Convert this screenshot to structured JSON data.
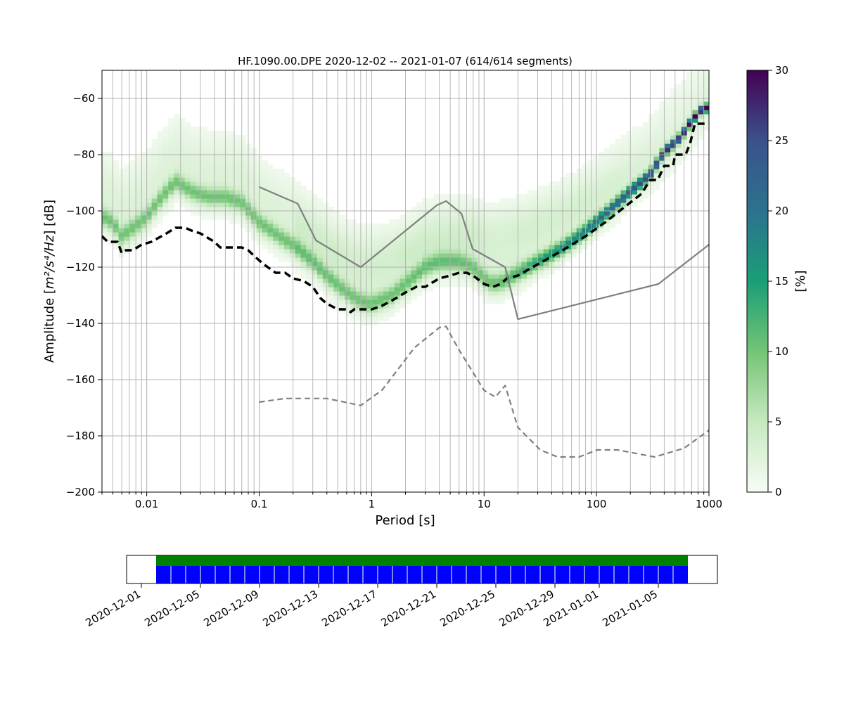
{
  "chart_data": [
    {
      "type": "heatmap",
      "title": "HF.1090.00.DPE   2020-12-02 -- 2021-01-07  (614/614 segments)",
      "xlabel": "Period [s]",
      "ylabel_prefix": "Amplitude [",
      "ylabel_math": "m²/s⁴/Hz",
      "ylabel_suffix": "] [dB]",
      "x_scale": "log",
      "xlim": [
        0.004,
        1000
      ],
      "ylim": [
        -200,
        -50
      ],
      "grid": true,
      "x_ticks": [
        {
          "value": 0.01,
          "label": "0.01"
        },
        {
          "value": 0.1,
          "label": "0.1"
        },
        {
          "value": 1,
          "label": "1"
        },
        {
          "value": 10,
          "label": "10"
        },
        {
          "value": 100,
          "label": "100"
        },
        {
          "value": 1000,
          "label": "1000"
        }
      ],
      "y_ticks": [
        {
          "value": -60,
          "label": "−60"
        },
        {
          "value": -80,
          "label": "−80"
        },
        {
          "value": -100,
          "label": "−100"
        },
        {
          "value": -120,
          "label": "−120"
        },
        {
          "value": -140,
          "label": "−140"
        },
        {
          "value": -160,
          "label": "−160"
        },
        {
          "value": -180,
          "label": "−180"
        },
        {
          "value": -200,
          "label": "−200"
        }
      ],
      "colorbar": {
        "label": "[%]",
        "range": [
          0,
          30
        ],
        "colormap": "viridis_r-like (white → green → teal → purple)",
        "stops": [
          "#f7fcf5",
          "#c7e9c0",
          "#74c476",
          "#1a9e77",
          "#2c728e",
          "#3b528b",
          "#440154"
        ],
        "ticks": [
          {
            "value": 0,
            "label": "0"
          },
          {
            "value": 5,
            "label": "5"
          },
          {
            "value": 10,
            "label": "10"
          },
          {
            "value": 15,
            "label": "15"
          },
          {
            "value": 20,
            "label": "20"
          },
          {
            "value": 25,
            "label": "25"
          },
          {
            "value": 30,
            "label": "30"
          }
        ]
      },
      "ppsd_mode_ridge": [
        [
          0.004,
          -102
        ],
        [
          0.005,
          -104
        ],
        [
          0.006,
          -109
        ],
        [
          0.0075,
          -106
        ],
        [
          0.01,
          -102
        ],
        [
          0.013,
          -96
        ],
        [
          0.018,
          -89.5
        ],
        [
          0.025,
          -93
        ],
        [
          0.035,
          -95
        ],
        [
          0.05,
          -95
        ],
        [
          0.07,
          -97
        ],
        [
          0.1,
          -104
        ],
        [
          0.15,
          -109
        ],
        [
          0.2,
          -112
        ],
        [
          0.3,
          -118
        ],
        [
          0.4,
          -123
        ],
        [
          0.6,
          -129
        ],
        [
          0.8,
          -132
        ],
        [
          1.0,
          -133
        ],
        [
          1.5,
          -130
        ],
        [
          2.0,
          -126
        ],
        [
          3.0,
          -120
        ],
        [
          4.0,
          -118
        ],
        [
          6.0,
          -118
        ],
        [
          8.0,
          -120
        ],
        [
          10.0,
          -124
        ],
        [
          12.0,
          -126
        ],
        [
          15.0,
          -125
        ],
        [
          20.0,
          -122
        ],
        [
          30.0,
          -118
        ],
        [
          50.0,
          -113
        ],
        [
          80.0,
          -107
        ],
        [
          120.0,
          -101
        ],
        [
          200.0,
          -93
        ],
        [
          300.0,
          -87
        ],
        [
          400.0,
          -79
        ],
        [
          550.0,
          -74
        ],
        [
          700.0,
          -68
        ],
        [
          850.0,
          -64
        ],
        [
          1000.0,
          -63
        ]
      ],
      "diffuse_branch": [
        [
          0.2,
          -106
        ],
        [
          0.5,
          -114
        ],
        [
          1.0,
          -116
        ],
        [
          3.0,
          -113
        ],
        [
          6.0,
          -110
        ],
        [
          10.0,
          -107
        ],
        [
          20.0,
          -105
        ],
        [
          50.0,
          -100
        ],
        [
          100.0,
          -95
        ],
        [
          200.0,
          -88
        ],
        [
          400.0,
          -80
        ],
        [
          700.0,
          -70
        ],
        [
          1000.0,
          -60
        ]
      ],
      "series": [
        {
          "name": "",
          "style": "black dashed thick",
          "points": [
            [
              0.004,
              -109
            ],
            [
              0.0045,
              -111
            ],
            [
              0.0055,
              -111
            ],
            [
              0.006,
              -115
            ],
            [
              0.0065,
              -114
            ],
            [
              0.0075,
              -114
            ],
            [
              0.009,
              -112
            ],
            [
              0.011,
              -111
            ],
            [
              0.015,
              -108
            ],
            [
              0.018,
              -106
            ],
            [
              0.022,
              -106
            ],
            [
              0.025,
              -107
            ],
            [
              0.03,
              -108
            ],
            [
              0.04,
              -111
            ],
            [
              0.045,
              -113
            ],
            [
              0.06,
              -113
            ],
            [
              0.07,
              -113
            ],
            [
              0.08,
              -114
            ],
            [
              0.09,
              -116
            ],
            [
              0.11,
              -119
            ],
            [
              0.14,
              -122
            ],
            [
              0.17,
              -122
            ],
            [
              0.2,
              -124
            ],
            [
              0.25,
              -125
            ],
            [
              0.3,
              -127
            ],
            [
              0.35,
              -131
            ],
            [
              0.4,
              -133
            ],
            [
              0.5,
              -135
            ],
            [
              0.6,
              -135
            ],
            [
              0.65,
              -136
            ],
            [
              0.7,
              -135
            ],
            [
              0.8,
              -135
            ],
            [
              1.0,
              -135
            ],
            [
              1.2,
              -134
            ],
            [
              1.5,
              -132
            ],
            [
              2.0,
              -129
            ],
            [
              2.5,
              -127
            ],
            [
              3.0,
              -127
            ],
            [
              4.0,
              -124
            ],
            [
              5.0,
              -123
            ],
            [
              6.0,
              -122
            ],
            [
              7.0,
              -122
            ],
            [
              8.0,
              -123
            ],
            [
              10.0,
              -126
            ],
            [
              12.0,
              -127
            ],
            [
              14.0,
              -126
            ],
            [
              16.0,
              -124
            ],
            [
              20.0,
              -123
            ],
            [
              30.0,
              -119
            ],
            [
              50.0,
              -114
            ],
            [
              80.0,
              -109
            ],
            [
              120.0,
              -104
            ],
            [
              200.0,
              -97
            ],
            [
              250.0,
              -94
            ],
            [
              300.0,
              -89
            ],
            [
              350.0,
              -89
            ],
            [
              400.0,
              -84
            ],
            [
              480.0,
              -84
            ],
            [
              500.0,
              -80
            ],
            [
              620.0,
              -80
            ],
            [
              680.0,
              -76
            ],
            [
              750.0,
              -69
            ],
            [
              1000.0,
              -69
            ]
          ]
        },
        {
          "name": "",
          "style": "gray solid",
          "points": [
            [
              0.1,
              -91.5
            ],
            [
              0.22,
              -97.4
            ],
            [
              0.32,
              -110.5
            ],
            [
              0.8,
              -120.0
            ],
            [
              3.8,
              -98.0
            ],
            [
              4.6,
              -96.5
            ],
            [
              6.3,
              -101.0
            ],
            [
              7.9,
              -113.5
            ],
            [
              15.4,
              -120.0
            ],
            [
              20.0,
              -138.5
            ],
            [
              354.8,
              -126.0
            ],
            [
              1000.0,
              -112.0
            ]
          ]
        },
        {
          "name": "",
          "style": "gray dashed",
          "points": [
            [
              0.1,
              -168.0
            ],
            [
              0.17,
              -166.7
            ],
            [
              0.4,
              -166.7
            ],
            [
              0.8,
              -169.2
            ],
            [
              1.24,
              -163.7
            ],
            [
              2.41,
              -148.6
            ],
            [
              4.0,
              -141.5
            ],
            [
              4.6,
              -141.1
            ],
            [
              5.9,
              -149.0
            ],
            [
              10.0,
              -163.8
            ],
            [
              12.6,
              -166.2
            ],
            [
              15.4,
              -162.1
            ],
            [
              20.0,
              -177.0
            ],
            [
              31.6,
              -185.0
            ],
            [
              45.0,
              -187.5
            ],
            [
              70.0,
              -187.5
            ],
            [
              101.0,
              -185.0
            ],
            [
              154.0,
              -185.0
            ],
            [
              328.0,
              -187.5
            ],
            [
              600.0,
              -184.4
            ],
            [
              1000.0,
              -178.0
            ]
          ]
        }
      ]
    },
    {
      "type": "bar",
      "title": "",
      "timeline_range": [
        "2020-11-30 00:00",
        "2021-01-09 00:00"
      ],
      "top_bar": {
        "start": "2020-12-02",
        "end": "2021-01-07",
        "color": "#008000"
      },
      "blue_bar": {
        "start": "2020-12-02",
        "end": "2021-01-07",
        "color": "#0000ff",
        "divider_color": "#ffffff"
      },
      "x_ticks": [
        {
          "value": "2020-12-01",
          "label": "2020-12-01"
        },
        {
          "value": "2020-12-05",
          "label": "2020-12-05"
        },
        {
          "value": "2020-12-09",
          "label": "2020-12-09"
        },
        {
          "value": "2020-12-13",
          "label": "2020-12-13"
        },
        {
          "value": "2020-12-17",
          "label": "2020-12-17"
        },
        {
          "value": "2020-12-21",
          "label": "2020-12-21"
        },
        {
          "value": "2020-12-25",
          "label": "2020-12-25"
        },
        {
          "value": "2020-12-29",
          "label": "2020-12-29"
        },
        {
          "value": "2021-01-01",
          "label": "2021-01-01"
        },
        {
          "value": "2021-01-05",
          "label": "2021-01-05"
        }
      ]
    }
  ]
}
